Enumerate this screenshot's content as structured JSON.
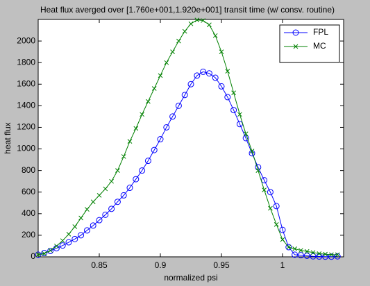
{
  "chart_data": {
    "type": "line",
    "title": "Heat flux averged over [1.760e+001,1.920e+001] transit time (w/ consv. routine)",
    "xlabel": "normalized psi",
    "ylabel": "heat flux",
    "x": [
      0.8,
      0.805,
      0.81,
      0.815,
      0.82,
      0.825,
      0.83,
      0.835,
      0.84,
      0.845,
      0.85,
      0.855,
      0.86,
      0.865,
      0.87,
      0.875,
      0.88,
      0.885,
      0.89,
      0.895,
      0.9,
      0.905,
      0.91,
      0.915,
      0.92,
      0.925,
      0.93,
      0.935,
      0.94,
      0.945,
      0.95,
      0.955,
      0.96,
      0.965,
      0.97,
      0.975,
      0.98,
      0.985,
      0.99,
      0.995,
      1.0,
      1.005,
      1.01,
      1.015,
      1.02,
      1.025,
      1.03,
      1.035,
      1.04,
      1.045
    ],
    "series": [
      {
        "name": "FPL",
        "color": "#0000ff",
        "marker": "o",
        "values": [
          20,
          35,
          55,
          80,
          105,
          135,
          165,
          200,
          245,
          290,
          340,
          390,
          445,
          510,
          570,
          640,
          720,
          800,
          890,
          990,
          1090,
          1200,
          1300,
          1400,
          1500,
          1600,
          1680,
          1715,
          1700,
          1660,
          1580,
          1480,
          1360,
          1230,
          1100,
          960,
          830,
          710,
          600,
          470,
          250,
          90,
          20,
          15,
          10,
          5,
          3,
          2,
          2,
          5
        ]
      },
      {
        "name": "MC",
        "color": "#008000",
        "marker": "x",
        "values": [
          20,
          30,
          60,
          100,
          150,
          210,
          280,
          360,
          440,
          510,
          570,
          630,
          700,
          800,
          930,
          1070,
          1190,
          1320,
          1440,
          1560,
          1680,
          1800,
          1900,
          2000,
          2090,
          2160,
          2195,
          2190,
          2150,
          2050,
          1900,
          1720,
          1520,
          1320,
          1140,
          980,
          800,
          620,
          450,
          300,
          160,
          90,
          75,
          60,
          50,
          40,
          30,
          25,
          20,
          20
        ]
      }
    ],
    "xlim": [
      0.8,
      1.05
    ],
    "ylim": [
      0,
      2200
    ],
    "xticks": [
      0.85,
      0.9,
      0.95,
      1
    ],
    "yticks": [
      0,
      200,
      400,
      600,
      800,
      1000,
      1200,
      1400,
      1600,
      1800,
      2000
    ],
    "legend": "northeast"
  }
}
